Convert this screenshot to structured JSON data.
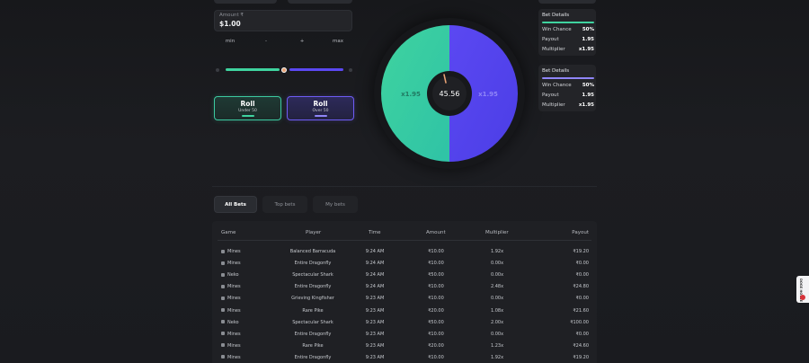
{
  "amount": {
    "label": "Amount ₹",
    "value": "$1.00"
  },
  "adjust": {
    "min": "min",
    "minus": "-",
    "plus": "+",
    "max": "max"
  },
  "colors": {
    "green": "#3fd39f",
    "purple": "#5b48f2",
    "bg": "#1a1b1f"
  },
  "slider": {
    "value_fraction": 0.5
  },
  "roll": {
    "under": {
      "title": "Roll",
      "sub": "Under 50"
    },
    "over": {
      "title": "Roll",
      "sub": "Over 50"
    }
  },
  "wheel": {
    "result": "45.56",
    "left_mult": "x1.95",
    "right_mult": "x1.95",
    "split_percent": 50
  },
  "bet_details": [
    {
      "title": "Bet Details",
      "win_chance_label": "Win Chance",
      "win_chance": "50%",
      "payout_label": "Payout",
      "payout": "1.95",
      "multiplier_label": "Multiplier",
      "multiplier": "x1.95",
      "accent": "#3fd39f"
    },
    {
      "title": "Bet Details",
      "win_chance_label": "Win Chance",
      "win_chance": "50%",
      "payout_label": "Payout",
      "payout": "1.95",
      "multiplier_label": "Multiplier",
      "multiplier": "x1.95",
      "accent": "#8f85f7"
    }
  ],
  "tabs": [
    {
      "label": "All Bets",
      "active": true
    },
    {
      "label": "Top bets",
      "active": false
    },
    {
      "label": "My bets",
      "active": false
    }
  ],
  "table": {
    "headers": {
      "game": "Game",
      "player": "Player",
      "time": "Time",
      "amount": "Amount",
      "multiplier": "Multiplier",
      "payout": "Payout"
    },
    "rows": [
      {
        "game": "Mines",
        "player": "Balanced Barracuda",
        "time": "9:24 AM",
        "amount": "₹10.00",
        "multiplier": "1.92x",
        "payout": "₹19.20"
      },
      {
        "game": "Mines",
        "player": "Entire Dragonfly",
        "time": "9:24 AM",
        "amount": "₹10.00",
        "multiplier": "0.00x",
        "payout": "₹0.00"
      },
      {
        "game": "Neko",
        "player": "Spectacular Shark",
        "time": "9:24 AM",
        "amount": "₹50.00",
        "multiplier": "0.00x",
        "payout": "₹0.00"
      },
      {
        "game": "Mines",
        "player": "Entire Dragonfly",
        "time": "9:24 AM",
        "amount": "₹10.00",
        "multiplier": "2.48x",
        "payout": "₹24.80"
      },
      {
        "game": "Mines",
        "player": "Grieving Kingfisher",
        "time": "9:23 AM",
        "amount": "₹10.00",
        "multiplier": "0.00x",
        "payout": "₹0.00"
      },
      {
        "game": "Mines",
        "player": "Rare Pike",
        "time": "9:23 AM",
        "amount": "₹20.00",
        "multiplier": "1.08x",
        "payout": "₹21.60"
      },
      {
        "game": "Neko",
        "player": "Spectacular Shark",
        "time": "9:23 AM",
        "amount": "₹50.00",
        "multiplier": "2.00x",
        "payout": "₹100.00"
      },
      {
        "game": "Mines",
        "player": "Entire Dragonfly",
        "time": "9:23 AM",
        "amount": "₹10.00",
        "multiplier": "0.00x",
        "payout": "₹0.00"
      },
      {
        "game": "Mines",
        "player": "Rare Pike",
        "time": "9:23 AM",
        "amount": "₹20.00",
        "multiplier": "1.23x",
        "payout": "₹24.60"
      },
      {
        "game": "Mines",
        "player": "Entire Dragonfly",
        "time": "9:23 AM",
        "amount": "₹10.00",
        "multiplier": "1.92x",
        "payout": "₹19.20"
      }
    ]
  },
  "side_badge": {
    "text": "DOGE HOUSE"
  }
}
